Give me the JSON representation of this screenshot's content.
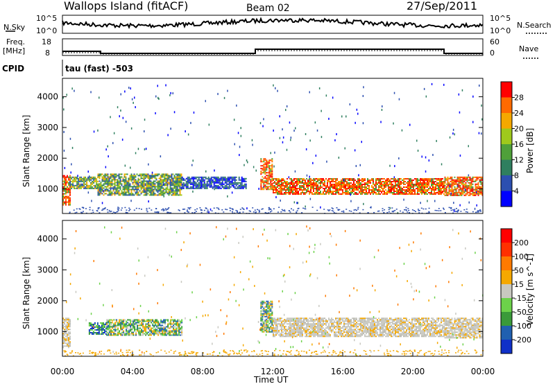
{
  "header": {
    "station": "Wallops Island (fitACF)",
    "beam": "Beam 02",
    "date": "27/Sep/2011"
  },
  "top_panels": {
    "nsky_label": "N.Sky",
    "nsky_ticks": [
      "10^5",
      "10^0"
    ],
    "nsearch_label": "N.Search",
    "nsearch_ticks": [
      "10^5",
      "10^0"
    ],
    "freq_label_1": "Freq.",
    "freq_label_2": "[MHz]",
    "freq_ticks": [
      "18",
      "8"
    ],
    "nave_label": "Nave",
    "nave_ticks": [
      "60",
      "0"
    ],
    "cpid_label": "CPID",
    "cpid_value": "tau (fast) -503"
  },
  "chart_data": [
    {
      "type": "heatmap",
      "name": "power",
      "ylabel": "Slant Range [km]",
      "yticks": [
        "4000",
        "3000",
        "2000",
        "1000"
      ],
      "ylim": [
        200,
        4600
      ],
      "xlim": [
        0,
        24
      ],
      "colorbar": {
        "label": "Power [dB]",
        "ticks": [
          "28",
          "24",
          "20",
          "16",
          "12",
          "8",
          "4"
        ],
        "colors": [
          "#0000ff",
          "#2c4fb0",
          "#2f7f5f",
          "#4fa03a",
          "#9fc91c",
          "#f5a800",
          "#ff6a00",
          "#ff0000"
        ]
      },
      "bands": [
        {
          "x": [
            0.0,
            0.4
          ],
          "y": [
            500,
            1450
          ],
          "level": "high"
        },
        {
          "x": [
            0.4,
            2.0
          ],
          "y": [
            1000,
            1400
          ],
          "level": "mid"
        },
        {
          "x": [
            2.0,
            6.8
          ],
          "y": [
            800,
            1500
          ],
          "level": "mid"
        },
        {
          "x": [
            6.8,
            10.5
          ],
          "y": [
            1000,
            1400
          ],
          "level": "low"
        },
        {
          "x": [
            11.3,
            12.0
          ],
          "y": [
            1000,
            2000
          ],
          "level": "high"
        },
        {
          "x": [
            12.0,
            21.8
          ],
          "y": [
            850,
            1350
          ],
          "level": "high"
        },
        {
          "x": [
            21.8,
            24.0
          ],
          "y": [
            800,
            1400
          ],
          "level": "high"
        }
      ]
    },
    {
      "type": "heatmap",
      "name": "velocity",
      "ylabel": "Slant Range [km]",
      "yticks": [
        "4000",
        "3000",
        "2000",
        "1000"
      ],
      "ylim": [
        200,
        4600
      ],
      "xlim": [
        0,
        24
      ],
      "xticks": [
        "00:00",
        "04:00",
        "08:00",
        "12:00",
        "16:00",
        "20:00",
        "00:00"
      ],
      "xlabel": "Time UT",
      "colorbar": {
        "label": "Velocity [m s^-1]",
        "ticks": [
          "200",
          "100",
          "50",
          "15",
          "-15",
          "-50",
          "-100",
          "-200"
        ],
        "colors": [
          "#1030c8",
          "#2060b0",
          "#3a9a3a",
          "#6cd24a",
          "#c8c8c0",
          "#f5a800",
          "#ff7a00",
          "#ff3000",
          "#ff0000"
        ]
      },
      "bands": [
        {
          "x": [
            0.0,
            0.4
          ],
          "y": [
            500,
            1450
          ],
          "level": "gray"
        },
        {
          "x": [
            1.5,
            2.5
          ],
          "y": [
            900,
            1300
          ],
          "level": "blue"
        },
        {
          "x": [
            2.5,
            6.8
          ],
          "y": [
            900,
            1400
          ],
          "level": "green"
        },
        {
          "x": [
            11.3,
            12.0
          ],
          "y": [
            1000,
            2000
          ],
          "level": "green"
        },
        {
          "x": [
            12.0,
            21.8
          ],
          "y": [
            850,
            1450
          ],
          "level": "gray"
        },
        {
          "x": [
            21.8,
            24.0
          ],
          "y": [
            800,
            1450
          ],
          "level": "gray"
        }
      ]
    }
  ]
}
